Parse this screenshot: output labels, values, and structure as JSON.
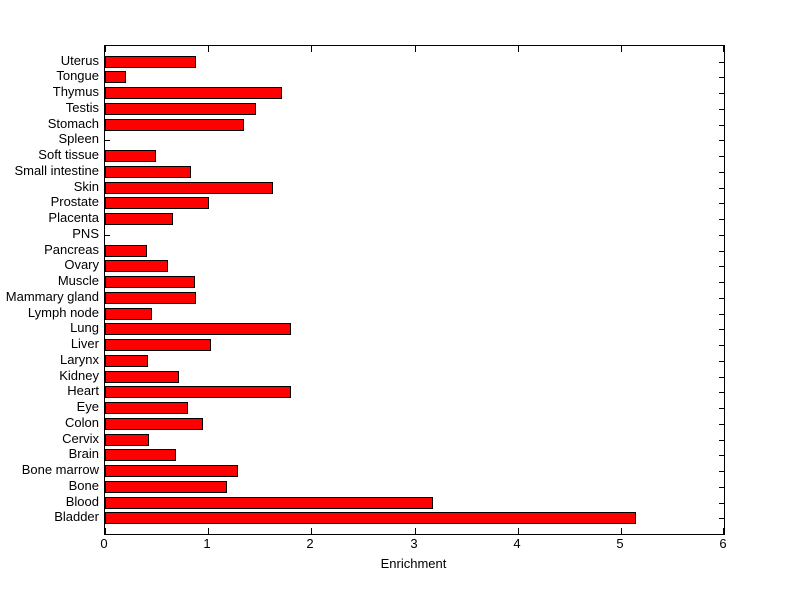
{
  "figure": {
    "background": "#ffffff"
  },
  "chart_data": {
    "type": "bar",
    "orientation": "horizontal",
    "title": "",
    "xlabel": "Enrichment",
    "ylabel": "",
    "xlim": [
      0,
      6
    ],
    "xticks": [
      0,
      1,
      2,
      3,
      4,
      5,
      6
    ],
    "grid": false,
    "legend": null,
    "bar_color": "#ff0000",
    "bar_edge_color": "#000000",
    "axis_color": "#000000",
    "categories_top_to_bottom": [
      "Uterus",
      "Tongue",
      "Thymus",
      "Testis",
      "Stomach",
      "Spleen",
      "Soft tissue",
      "Small intestine",
      "Skin",
      "Prostate",
      "Placenta",
      "PNS",
      "Pancreas",
      "Ovary",
      "Muscle",
      "Mammary gland",
      "Lymph node",
      "Lung",
      "Liver",
      "Larynx",
      "Kidney",
      "Heart",
      "Eye",
      "Colon",
      "Cervix",
      "Brain",
      "Bone marrow",
      "Bone",
      "Blood",
      "Bladder"
    ],
    "values_top_to_bottom": [
      0.88,
      0.2,
      1.72,
      1.46,
      1.35,
      0,
      0.49,
      0.83,
      1.63,
      1.01,
      0.66,
      0,
      0.41,
      0.61,
      0.87,
      0.88,
      0.46,
      1.8,
      1.03,
      0.42,
      0.72,
      1.8,
      0.8,
      0.95,
      0.43,
      0.69,
      1.29,
      1.18,
      3.18,
      5.15
    ]
  }
}
